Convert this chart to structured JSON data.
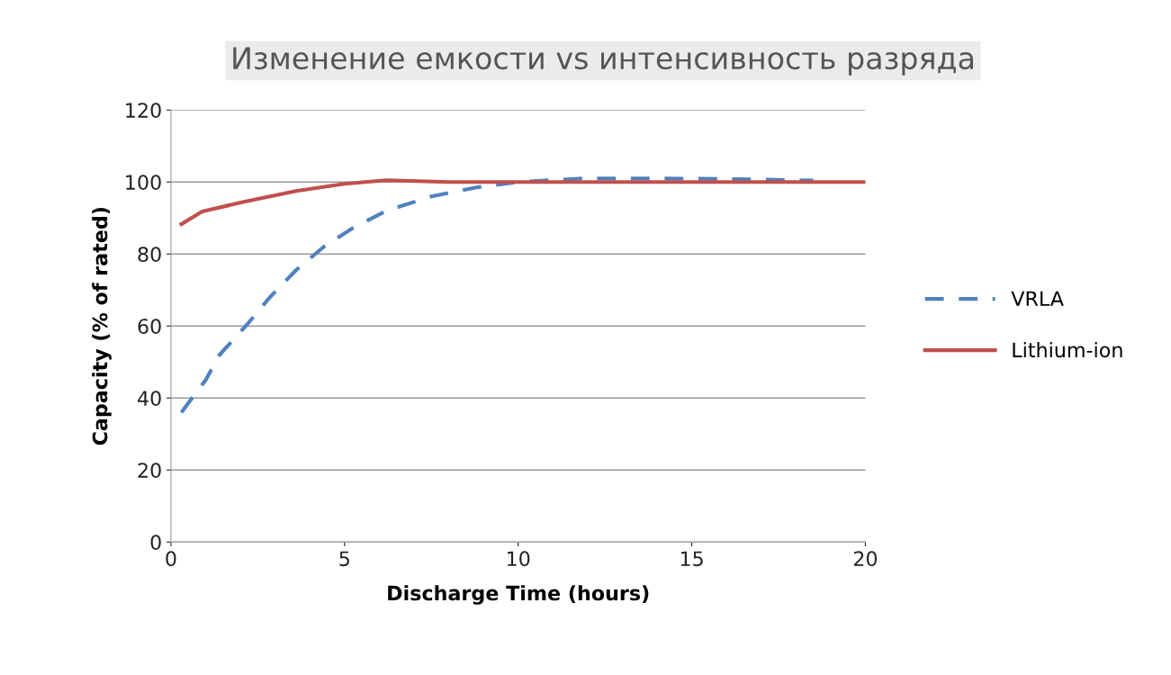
{
  "chart_data": {
    "type": "line",
    "title": "Изменение емкости vs интенсивность разряда",
    "xlabel": "Discharge Time (hours)",
    "ylabel": "Capacity (% of rated)",
    "xlim": [
      0,
      20
    ],
    "xticks": [
      0,
      5,
      10,
      15,
      20
    ],
    "ylim": [
      0,
      120
    ],
    "yticks": [
      0,
      20,
      40,
      60,
      80,
      100,
      120
    ],
    "grid": "y",
    "legend": "right",
    "series": [
      {
        "name": "VRLA",
        "color": "#4f81bd",
        "line_style": "dashed",
        "x": [
          0.3,
          1.0,
          1.4,
          2.2,
          2.85,
          3.6,
          4.4,
          5.2,
          6.2,
          7.5,
          8.8,
          10,
          11.9,
          14,
          16.3,
          18.5
        ],
        "values": [
          36,
          45,
          52,
          60.5,
          68,
          75.5,
          82,
          87,
          92,
          96,
          98.5,
          100,
          101,
          101,
          100.8,
          100.4
        ]
      },
      {
        "name": "Lithium-ion",
        "color": "#c0504d",
        "line_style": "solid",
        "x": [
          0.3,
          0.9,
          2.1,
          3.6,
          5,
          6.2,
          8,
          10,
          15,
          20
        ],
        "values": [
          88.3,
          91.8,
          94.5,
          97.5,
          99.5,
          100.5,
          100,
          100,
          100,
          100
        ]
      }
    ]
  }
}
